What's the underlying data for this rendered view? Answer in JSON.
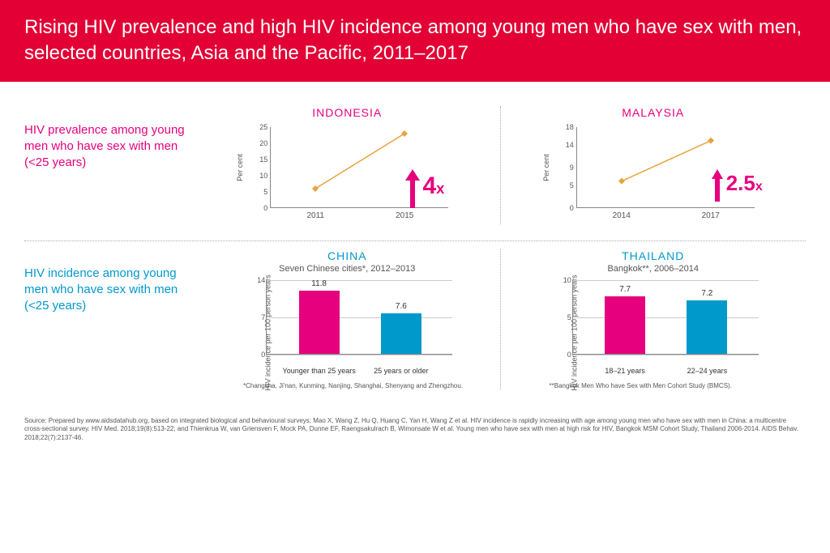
{
  "banner": "Rising HIV prevalence and high HIV incidence among young men who have sex with men, selected countries, Asia and the Pacific, 2011–2017",
  "row1": {
    "label": "HIV prevalence among young men who have sex with men (<25 years)",
    "indonesia": {
      "title": "INDONESIA",
      "ylabel": "Per cent",
      "yticks": [
        0,
        5,
        10,
        15,
        20,
        25
      ],
      "ymax": 25,
      "xticks": [
        "2011",
        "2015"
      ],
      "points": [
        6,
        23
      ],
      "line_color": "#e8a33d",
      "marker_color": "#e8a33d",
      "multiplier": "4",
      "mult_x": "x",
      "arrow_color": "#e6007e"
    },
    "malaysia": {
      "title": "MALAYSIA",
      "ylabel": "Per cent",
      "yticks": [
        0,
        5,
        9,
        14,
        18
      ],
      "ymax": 18,
      "xticks": [
        "2014",
        "2017"
      ],
      "points": [
        6,
        15
      ],
      "line_color": "#e8a33d",
      "marker_color": "#e8a33d",
      "multiplier": "2.5",
      "mult_x": "x",
      "arrow_color": "#e6007e"
    }
  },
  "row2": {
    "label": "HIV incidence among young men who have sex with men (<25 years)",
    "china": {
      "title": "CHINA",
      "subtitle": "Seven Chinese cities*, 2012–2013",
      "ylabel": "HIV incidence per 100 person years",
      "yticks": [
        0,
        7,
        14
      ],
      "ymax": 14,
      "bars": [
        {
          "label": "Younger than 25 years",
          "value": 11.8,
          "color": "#e6007e"
        },
        {
          "label": "25 years or older",
          "value": 7.6,
          "color": "#0099cc"
        }
      ],
      "footnote": "*Changsha, Ji'nan, Kunming, Nanjing, Shanghai, Shenyang and Zhengzhou."
    },
    "thailand": {
      "title": "THAILAND",
      "subtitle": "Bangkok**, 2006–2014",
      "ylabel": "HIV incidence per 100 person years",
      "yticks": [
        0,
        5,
        10
      ],
      "ymax": 10,
      "bars": [
        {
          "label": "18–21 years",
          "value": 7.7,
          "color": "#e6007e"
        },
        {
          "label": "22–24 years",
          "value": 7.2,
          "color": "#0099cc"
        }
      ],
      "footnote": "**Bangkok Men Who have Sex with Men Cohort Study (BMCS)."
    }
  },
  "source": "Source: Prepared by www.aidsdatahub.org, based on integrated biological and behavioural surveys; Mao X, Wang Z, Hu Q, Huang C, Yan H, Wang Z et al. HIV incidence is rapidly increasing with age among young men who have sex with men in China: a multicentre cross-sectional survey. HIV Med. 2018;19(8):513-22; and Thienkrua W, van Griensven F, Mock PA, Dunne EF, Raengsakulrach B, Wimonsate W et al. Young men who have sex with men at high risk for HIV, Bangkok MSM Cohort Study, Thailand 2006-2014. AIDS Behav. 2018;22(7):2137-46."
}
